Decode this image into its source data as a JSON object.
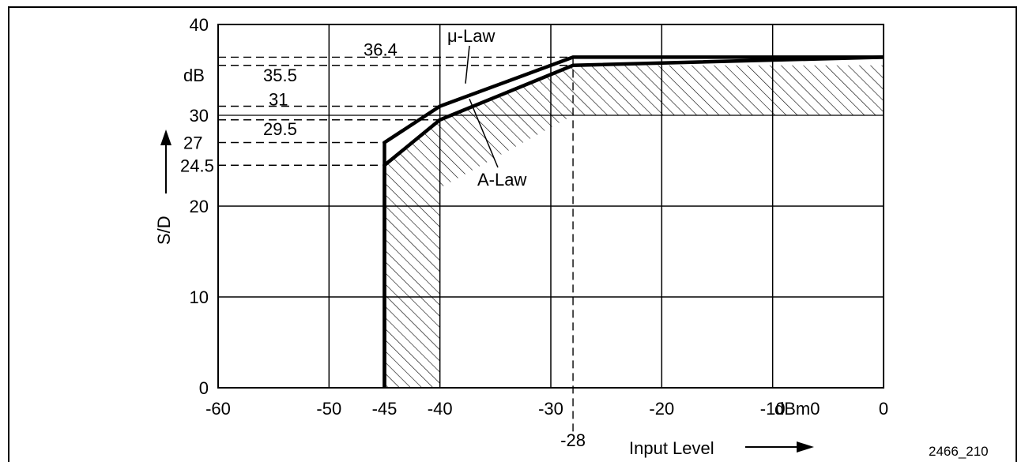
{
  "figure_id": "2466_210",
  "chart_data": {
    "type": "line",
    "title": "",
    "xlabel": "Input Level",
    "ylabel": "S/D",
    "y_unit": "dB",
    "x_unit": "dBm0",
    "xlim": [
      -60,
      0
    ],
    "ylim": [
      0,
      40
    ],
    "grid": true,
    "xticks": [
      -60,
      -50,
      -45,
      -40,
      -30,
      -28,
      -20,
      -10,
      0
    ],
    "x_tick_labels": [
      "-60",
      "-50",
      "-45",
      "-40",
      "-30",
      "-28",
      "-20",
      "-10",
      "0"
    ],
    "yticks": [
      0,
      10,
      20,
      30,
      40
    ],
    "y_tick_labels": [
      "0",
      "10",
      "20",
      "30",
      "40"
    ],
    "series": [
      {
        "name": "μ-Law",
        "x": [
          -45,
          -45,
          -40,
          -28,
          0
        ],
        "y": [
          0,
          27,
          31,
          36.4,
          36.4
        ]
      },
      {
        "name": "A-Law",
        "x": [
          -45,
          -45,
          -40,
          -28,
          0
        ],
        "y": [
          0,
          24.5,
          29.5,
          35.5,
          36.4
        ]
      }
    ],
    "reference_levels": [
      {
        "label": "36.4",
        "y": 36.4
      },
      {
        "label": "35.5",
        "y": 35.5
      },
      {
        "label": "31",
        "y": 31
      },
      {
        "label": "29.5",
        "y": 29.5
      },
      {
        "label": "27",
        "y": 27
      },
      {
        "label": "24.5",
        "y": 24.5
      }
    ],
    "reference_x": -28,
    "threshold_line_y": 30,
    "hatched_region": "tolerance area",
    "annotations": {
      "ylabel_unit": "dB",
      "xlabel_unit": "dBm0"
    }
  }
}
